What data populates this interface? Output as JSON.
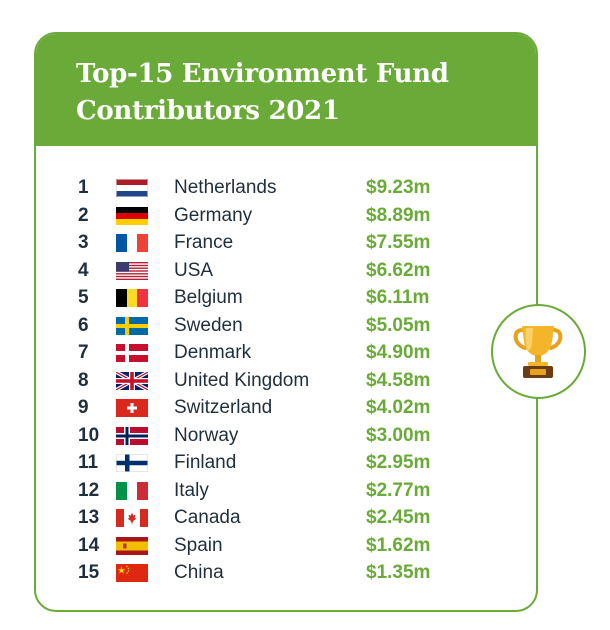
{
  "card": {
    "title_line1": "Top-15 Environment Fund",
    "title_line2": "Contributors 2021"
  },
  "colors": {
    "accent": "#6aaa38",
    "text": "#1f2f3d"
  },
  "rows": [
    {
      "rank": "1",
      "country": "Netherlands",
      "amount": "$9.23m",
      "flag_icon": "netherlands-flag-icon"
    },
    {
      "rank": "2",
      "country": "Germany",
      "amount": "$8.89m",
      "flag_icon": "germany-flag-icon"
    },
    {
      "rank": "3",
      "country": "France",
      "amount": "$7.55m",
      "flag_icon": "france-flag-icon"
    },
    {
      "rank": "4",
      "country": "USA",
      "amount": "$6.62m",
      "flag_icon": "usa-flag-icon"
    },
    {
      "rank": "5",
      "country": "Belgium",
      "amount": "$6.11m",
      "flag_icon": "belgium-flag-icon"
    },
    {
      "rank": "6",
      "country": "Sweden",
      "amount": "$5.05m",
      "flag_icon": "sweden-flag-icon"
    },
    {
      "rank": "7",
      "country": "Denmark",
      "amount": "$4.90m",
      "flag_icon": "denmark-flag-icon"
    },
    {
      "rank": "8",
      "country": "United Kingdom",
      "amount": "$4.58m",
      "flag_icon": "uk-flag-icon"
    },
    {
      "rank": "9",
      "country": "Switzerland",
      "amount": "$4.02m",
      "flag_icon": "switzerland-flag-icon"
    },
    {
      "rank": "10",
      "country": "Norway",
      "amount": "$3.00m",
      "flag_icon": "norway-flag-icon"
    },
    {
      "rank": "11",
      "country": "Finland",
      "amount": "$2.95m",
      "flag_icon": "finland-flag-icon"
    },
    {
      "rank": "12",
      "country": "Italy",
      "amount": "$2.77m",
      "flag_icon": "italy-flag-icon"
    },
    {
      "rank": "13",
      "country": "Canada",
      "amount": "$2.45m",
      "flag_icon": "canada-flag-icon"
    },
    {
      "rank": "14",
      "country": "Spain",
      "amount": "$1.62m",
      "flag_icon": "spain-flag-icon"
    },
    {
      "rank": "15",
      "country": "China",
      "amount": "$1.35m",
      "flag_icon": "china-flag-icon"
    }
  ],
  "badge": {
    "icon": "trophy-icon"
  }
}
